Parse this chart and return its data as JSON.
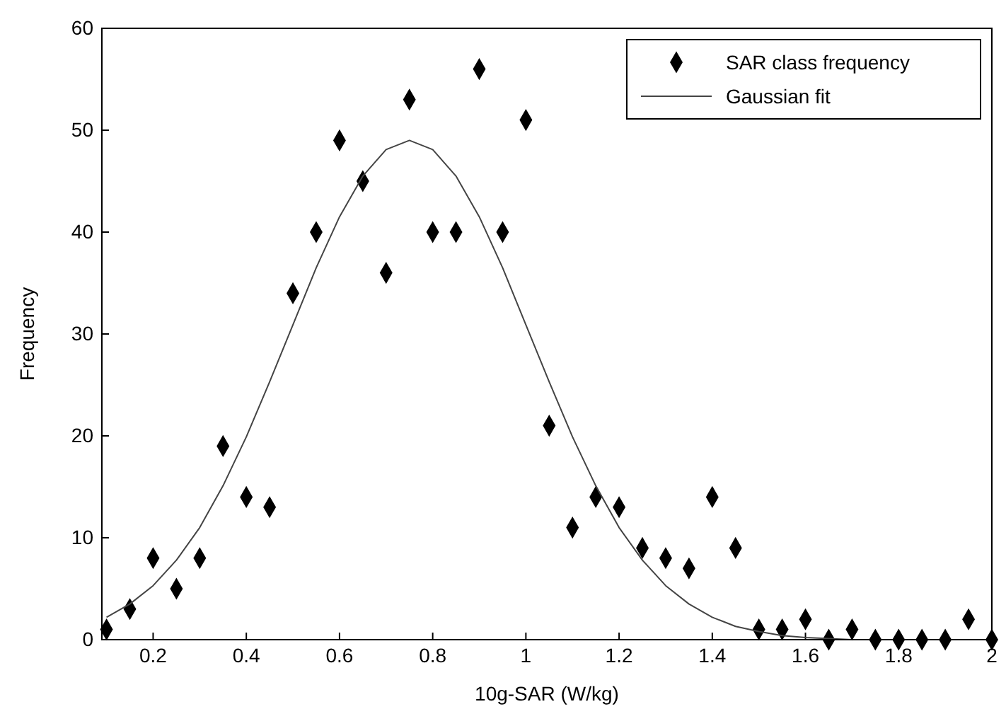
{
  "chart_data": {
    "type": "scatter",
    "xlabel": "10g-SAR (W/kg)",
    "ylabel": "Frequency",
    "xlim": [
      0.09,
      2
    ],
    "xticks": [
      0.2,
      0.4,
      0.6,
      0.8,
      1,
      1.2,
      1.4,
      1.6,
      1.8,
      2
    ],
    "ylim": [
      0,
      60
    ],
    "yticks": [
      0,
      10,
      20,
      30,
      40,
      50,
      60
    ],
    "grid": false,
    "legend": "top right",
    "series": [
      {
        "name": "SAR class frequency",
        "marker": "diamond",
        "color": "#000000",
        "x": [
          0.1,
          0.15,
          0.2,
          0.25,
          0.3,
          0.35,
          0.4,
          0.45,
          0.5,
          0.55,
          0.6,
          0.65,
          0.7,
          0.75,
          0.8,
          0.85,
          0.9,
          0.95,
          1.0,
          1.05,
          1.1,
          1.15,
          1.2,
          1.25,
          1.3,
          1.35,
          1.4,
          1.45,
          1.5,
          1.55,
          1.6,
          1.65,
          1.7,
          1.75,
          1.8,
          1.85,
          1.9,
          1.95,
          2.0
        ],
        "values": [
          1,
          3,
          8,
          5,
          8,
          19,
          14,
          13,
          34,
          40,
          49,
          45,
          36,
          53,
          40,
          40,
          56,
          40,
          51,
          21,
          11,
          14,
          13,
          9,
          8,
          7,
          14,
          9,
          1,
          1,
          2,
          0,
          1,
          0,
          0,
          0,
          0,
          2,
          0
        ]
      },
      {
        "name": "Gaussian fit",
        "type": "line",
        "marker": "none",
        "line_style": "solid",
        "color": "#444444",
        "x": [
          0.1,
          0.15,
          0.2,
          0.25,
          0.3,
          0.35,
          0.4,
          0.45,
          0.5,
          0.55,
          0.6,
          0.65,
          0.7,
          0.75,
          0.8,
          0.85,
          0.9,
          0.95,
          1.0,
          1.05,
          1.1,
          1.15,
          1.2,
          1.25,
          1.3,
          1.35,
          1.4,
          1.45,
          1.5,
          1.55,
          1.6,
          1.65,
          1.7,
          1.75,
          1.8,
          1.85,
          1.9,
          1.95,
          2.0
        ],
        "values": [
          2.2,
          3.5,
          5.3,
          7.8,
          11.0,
          15.1,
          19.9,
          25.3,
          30.9,
          36.5,
          41.5,
          45.5,
          48.1,
          49,
          48.1,
          45.5,
          41.5,
          36.5,
          30.9,
          25.3,
          19.9,
          15.1,
          11.0,
          7.8,
          5.3,
          3.5,
          2.2,
          1.3,
          0.8,
          0.4,
          0.2,
          0.1,
          0,
          0,
          0,
          0,
          0,
          0,
          0
        ]
      }
    ]
  }
}
